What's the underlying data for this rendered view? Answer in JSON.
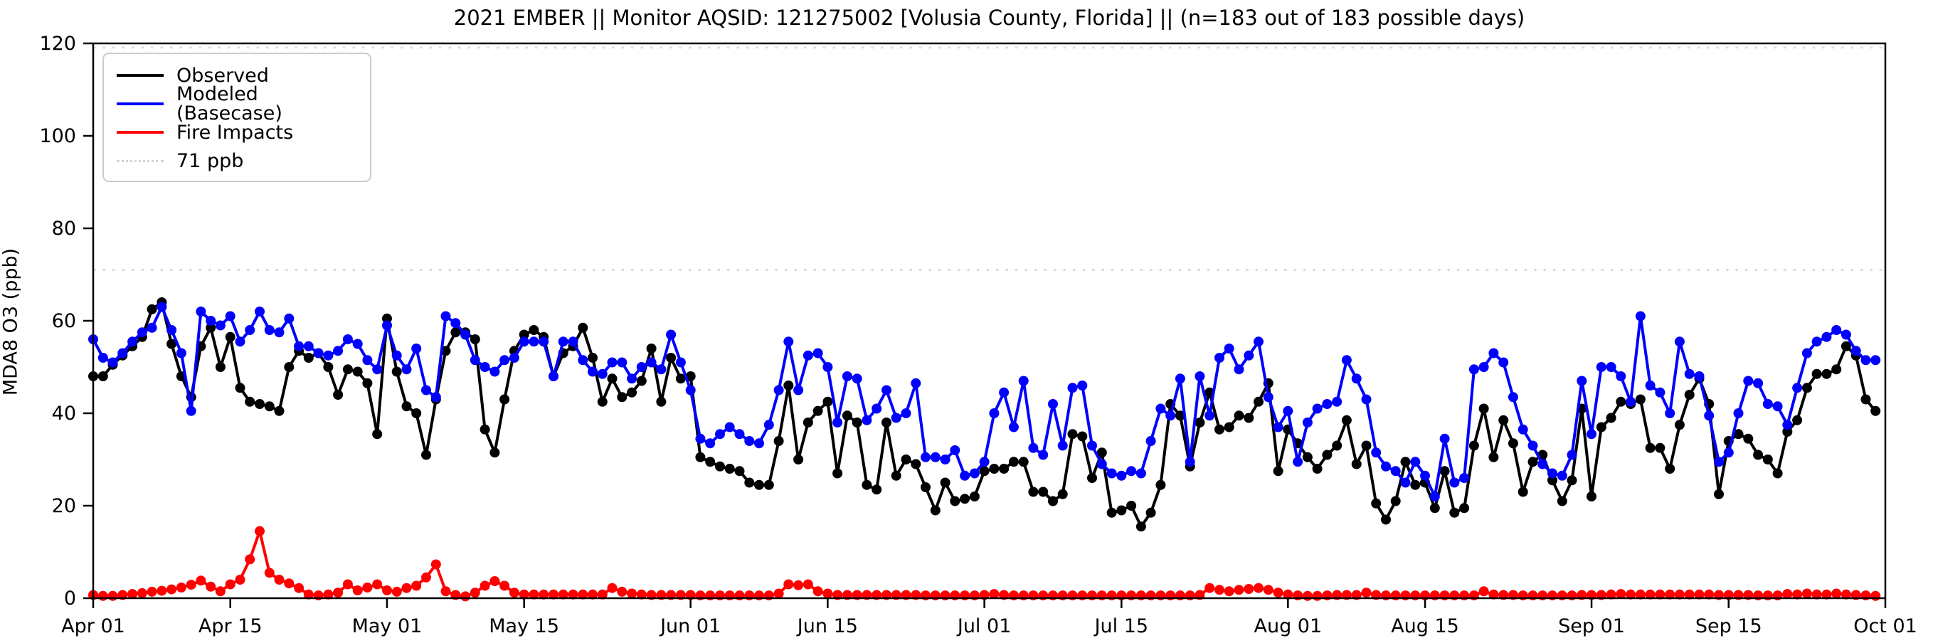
{
  "chart_data": {
    "type": "line",
    "title": "2021 EMBER || Monitor AQSID: 121275002 [Volusia County, Florida] || (n=183 out of 183 possible days)",
    "ylabel": "MDA8 O3 (ppb)",
    "ylim": [
      0,
      120
    ],
    "yticks": [
      0,
      20,
      40,
      60,
      80,
      100,
      120
    ],
    "x_range_days": 183,
    "xtick_labels": [
      "Apr 01",
      "Apr 15",
      "May 01",
      "May 15",
      "Jun 01",
      "Jun 15",
      "Jul 01",
      "Jul 15",
      "Aug 01",
      "Aug 15",
      "Sep 01",
      "Sep 15",
      "Oct 01"
    ],
    "xtick_days": [
      0,
      14,
      30,
      44,
      61,
      75,
      91,
      105,
      122,
      136,
      153,
      167,
      183
    ],
    "threshold": {
      "label": "71 ppb",
      "value": 71,
      "color": "#d3d3d3"
    },
    "legend_position": "upper-left",
    "grid": false,
    "series": [
      {
        "name": "Observed",
        "color": "#000000",
        "values": [
          48,
          48,
          50.5,
          52.5,
          54.5,
          56.5,
          62.5,
          64,
          55,
          48,
          43.5,
          54.5,
          58.5,
          50,
          56.5,
          45.5,
          42.5,
          42,
          41.5,
          40.5,
          50,
          53.5,
          52,
          53,
          50,
          44,
          49.5,
          49,
          46.5,
          35.5,
          60.5,
          49,
          41.5,
          40,
          31,
          43,
          53.5,
          57.5,
          57.5,
          56,
          36.5,
          31.5,
          43,
          53.5,
          57,
          58,
          56.5,
          48,
          53,
          54.5,
          58.5,
          52,
          42.5,
          47.5,
          43.5,
          44.5,
          47,
          54,
          42.5,
          52,
          47.5,
          48,
          30.5,
          29.5,
          28.5,
          28,
          27.5,
          25,
          24.5,
          24.5,
          34,
          46,
          30,
          38,
          40.5,
          42.5,
          27,
          39.5,
          38,
          24.5,
          23.5,
          38,
          26.5,
          30,
          29,
          24,
          19,
          25,
          21,
          21.5,
          22,
          27.5,
          28,
          28,
          29.5,
          29.5,
          23,
          23,
          21,
          22.5,
          35.5,
          35,
          26,
          31.5,
          18.5,
          19,
          20,
          15.5,
          18.5,
          24.5,
          42,
          39.5,
          28.5,
          38,
          44.5,
          36.5,
          37,
          39.5,
          39,
          42.5,
          46.5,
          27.5,
          36.5,
          33.5,
          30.5,
          28,
          31,
          33,
          38.5,
          29,
          33,
          20.5,
          17,
          21,
          29.5,
          24.5,
          25,
          19.5,
          27.5,
          18.5,
          19.5,
          33,
          41,
          30.5,
          38.5,
          33.5,
          23,
          29.5,
          31,
          25.5,
          21,
          25.5,
          41,
          22,
          37,
          39,
          42.5,
          42,
          43,
          32.5,
          32.5,
          28,
          37.5,
          44,
          47.5,
          42,
          22.5,
          34,
          35.5,
          34.5,
          31,
          30,
          27,
          36,
          38.5,
          45.5,
          48.5,
          48.5,
          49.5,
          54.5,
          52.5,
          43,
          40.5
        ]
      },
      {
        "name": "Modeled (Basecase)",
        "color": "#0000ff",
        "values": [
          56,
          52,
          51,
          53,
          55.5,
          57.5,
          58.5,
          63,
          58,
          53,
          40.5,
          62,
          60,
          59,
          61,
          55.5,
          58,
          62,
          58,
          57.5,
          60.5,
          54.5,
          54.5,
          53,
          52.5,
          53.5,
          56,
          55,
          51.5,
          49.5,
          59,
          52.5,
          49.5,
          54,
          45,
          43.5,
          61,
          59.5,
          57,
          51.5,
          50,
          49,
          51.5,
          52,
          55.5,
          55.5,
          55.5,
          48,
          55.5,
          55.5,
          51.5,
          49,
          48.5,
          51,
          51,
          47.5,
          50,
          51,
          49.5,
          57,
          51,
          45,
          34.5,
          33.5,
          35.5,
          37,
          35.5,
          34,
          33.5,
          37.5,
          45,
          55.5,
          45,
          52.5,
          53,
          50,
          38,
          48,
          47.5,
          38.5,
          41,
          45,
          39,
          40,
          46.5,
          30.5,
          30.5,
          30,
          32,
          26.5,
          27,
          29.5,
          40,
          44.5,
          37,
          47,
          32.5,
          31,
          42,
          33,
          45.5,
          46,
          33,
          29,
          27,
          26.5,
          27.5,
          27,
          34,
          41,
          39.5,
          47.5,
          29.5,
          48,
          39.5,
          52,
          54,
          49.5,
          52.5,
          55.5,
          43.5,
          37,
          40.5,
          29.5,
          38,
          41,
          42,
          42.5,
          51.5,
          47.5,
          43,
          31.5,
          28.5,
          27.5,
          25,
          29.5,
          26.5,
          22,
          34.5,
          25,
          26,
          49.5,
          50,
          53,
          51,
          43.5,
          36.5,
          33,
          29,
          27,
          26.5,
          31,
          47,
          35.5,
          50,
          50,
          48,
          42.5,
          61,
          46,
          44.5,
          40,
          55.5,
          48.5,
          48,
          39.5,
          29.5,
          31.5,
          40,
          47,
          46.5,
          42,
          41.5,
          37.5,
          45.5,
          53,
          55.5,
          56.5,
          58,
          57,
          53.5,
          51.5,
          51.5
        ]
      },
      {
        "name": "Fire Impacts",
        "color": "#ff0000",
        "values": [
          0.7,
          0.5,
          0.5,
          0.7,
          0.9,
          1.1,
          1.4,
          1.6,
          1.9,
          2.3,
          2.9,
          3.8,
          2.5,
          1.5,
          3,
          4,
          8.4,
          14.5,
          5.5,
          4,
          3.2,
          2.2,
          0.8,
          0.6,
          0.8,
          1.2,
          3,
          1.7,
          2.3,
          3,
          1.7,
          1.4,
          2.2,
          2.7,
          4.5,
          7.3,
          1.5,
          0.7,
          0.4,
          1.2,
          2.7,
          3.7,
          2.7,
          1.2,
          0.8,
          0.8,
          0.8,
          0.8,
          0.8,
          0.8,
          0.8,
          0.8,
          0.8,
          2.2,
          1.4,
          1,
          0.8,
          0.7,
          0.7,
          0.7,
          0.7,
          0.7,
          0.6,
          0.6,
          0.6,
          0.6,
          0.6,
          0.6,
          0.6,
          0.6,
          1,
          3,
          2.8,
          3,
          1.5,
          1,
          0.7,
          0.7,
          0.7,
          0.7,
          0.7,
          0.7,
          0.7,
          0.7,
          0.7,
          0.6,
          0.6,
          0.6,
          0.6,
          0.6,
          0.6,
          0.7,
          0.9,
          0.7,
          0.6,
          0.6,
          0.6,
          0.6,
          0.6,
          0.6,
          0.6,
          0.6,
          0.6,
          0.6,
          0.6,
          0.6,
          0.6,
          0.6,
          0.6,
          0.6,
          0.6,
          0.6,
          0.6,
          0.7,
          2.2,
          1.8,
          1.5,
          1.8,
          2,
          2.2,
          1.8,
          1.2,
          0.8,
          0.6,
          0.5,
          0.5,
          0.6,
          0.7,
          0.7,
          0.7,
          1.2,
          0.7,
          0.6,
          0.6,
          0.6,
          0.6,
          0.6,
          0.6,
          0.6,
          0.6,
          0.6,
          0.6,
          1.5,
          0.8,
          0.7,
          0.7,
          0.6,
          0.6,
          0.6,
          0.6,
          0.6,
          0.6,
          0.7,
          0.7,
          0.7,
          0.8,
          0.9,
          0.8,
          0.8,
          0.8,
          0.8,
          0.8,
          0.8,
          0.8,
          0.8,
          0.8,
          0.7,
          0.7,
          0.7,
          0.7,
          0.6,
          0.6,
          0.6,
          0.9,
          0.8,
          1,
          0.8,
          0.8,
          1,
          0.8,
          0.7,
          0.6,
          0.5
        ]
      }
    ],
    "legend": [
      {
        "label": "Observed",
        "swatch": "sw-solid-black"
      },
      {
        "label": "Modeled (Basecase)",
        "swatch": "sw-solid-blue"
      },
      {
        "label": "Fire Impacts",
        "swatch": "sw-solid-red"
      },
      {
        "label": "71 ppb",
        "swatch": "sw-dotted-gray"
      }
    ]
  }
}
